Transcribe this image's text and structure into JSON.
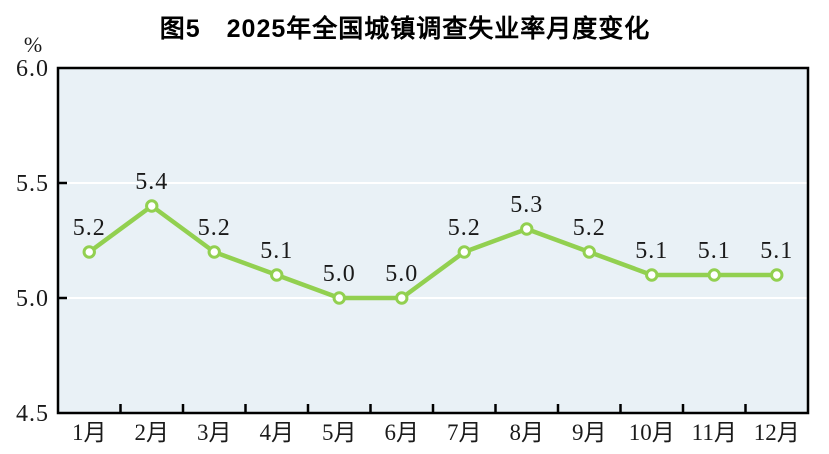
{
  "chart_data": {
    "type": "line",
    "title": "图5　2025年全国城镇调查失业率月度变化",
    "unit": "%",
    "categories": [
      "1月",
      "2月",
      "3月",
      "4月",
      "5月",
      "6月",
      "7月",
      "8月",
      "9月",
      "10月",
      "11月",
      "12月"
    ],
    "values": [
      5.2,
      5.4,
      5.2,
      5.1,
      5.0,
      5.0,
      5.2,
      5.3,
      5.2,
      5.1,
      5.1,
      5.1
    ],
    "data_labels": [
      "5.2",
      "5.4",
      "5.2",
      "5.1",
      "5.0",
      "5.0",
      "5.2",
      "5.3",
      "5.2",
      "5.1",
      "5.1",
      "5.1"
    ],
    "xlabel": "",
    "ylabel": "%",
    "ylim": [
      4.5,
      6.0
    ],
    "yticks": [
      6.0,
      5.5,
      5.0,
      4.5
    ],
    "ytick_labels": [
      "6.0",
      "5.5",
      "5.0",
      "4.5"
    ],
    "grid": true,
    "legend_position": "none",
    "colors": {
      "line": "#92d050",
      "marker_fill": "#ffffff",
      "marker_stroke": "#92d050",
      "plot_background": "#e9f1f6",
      "gridline": "#ffffff",
      "axis": "#000000",
      "text": "#1a1a1a"
    }
  }
}
